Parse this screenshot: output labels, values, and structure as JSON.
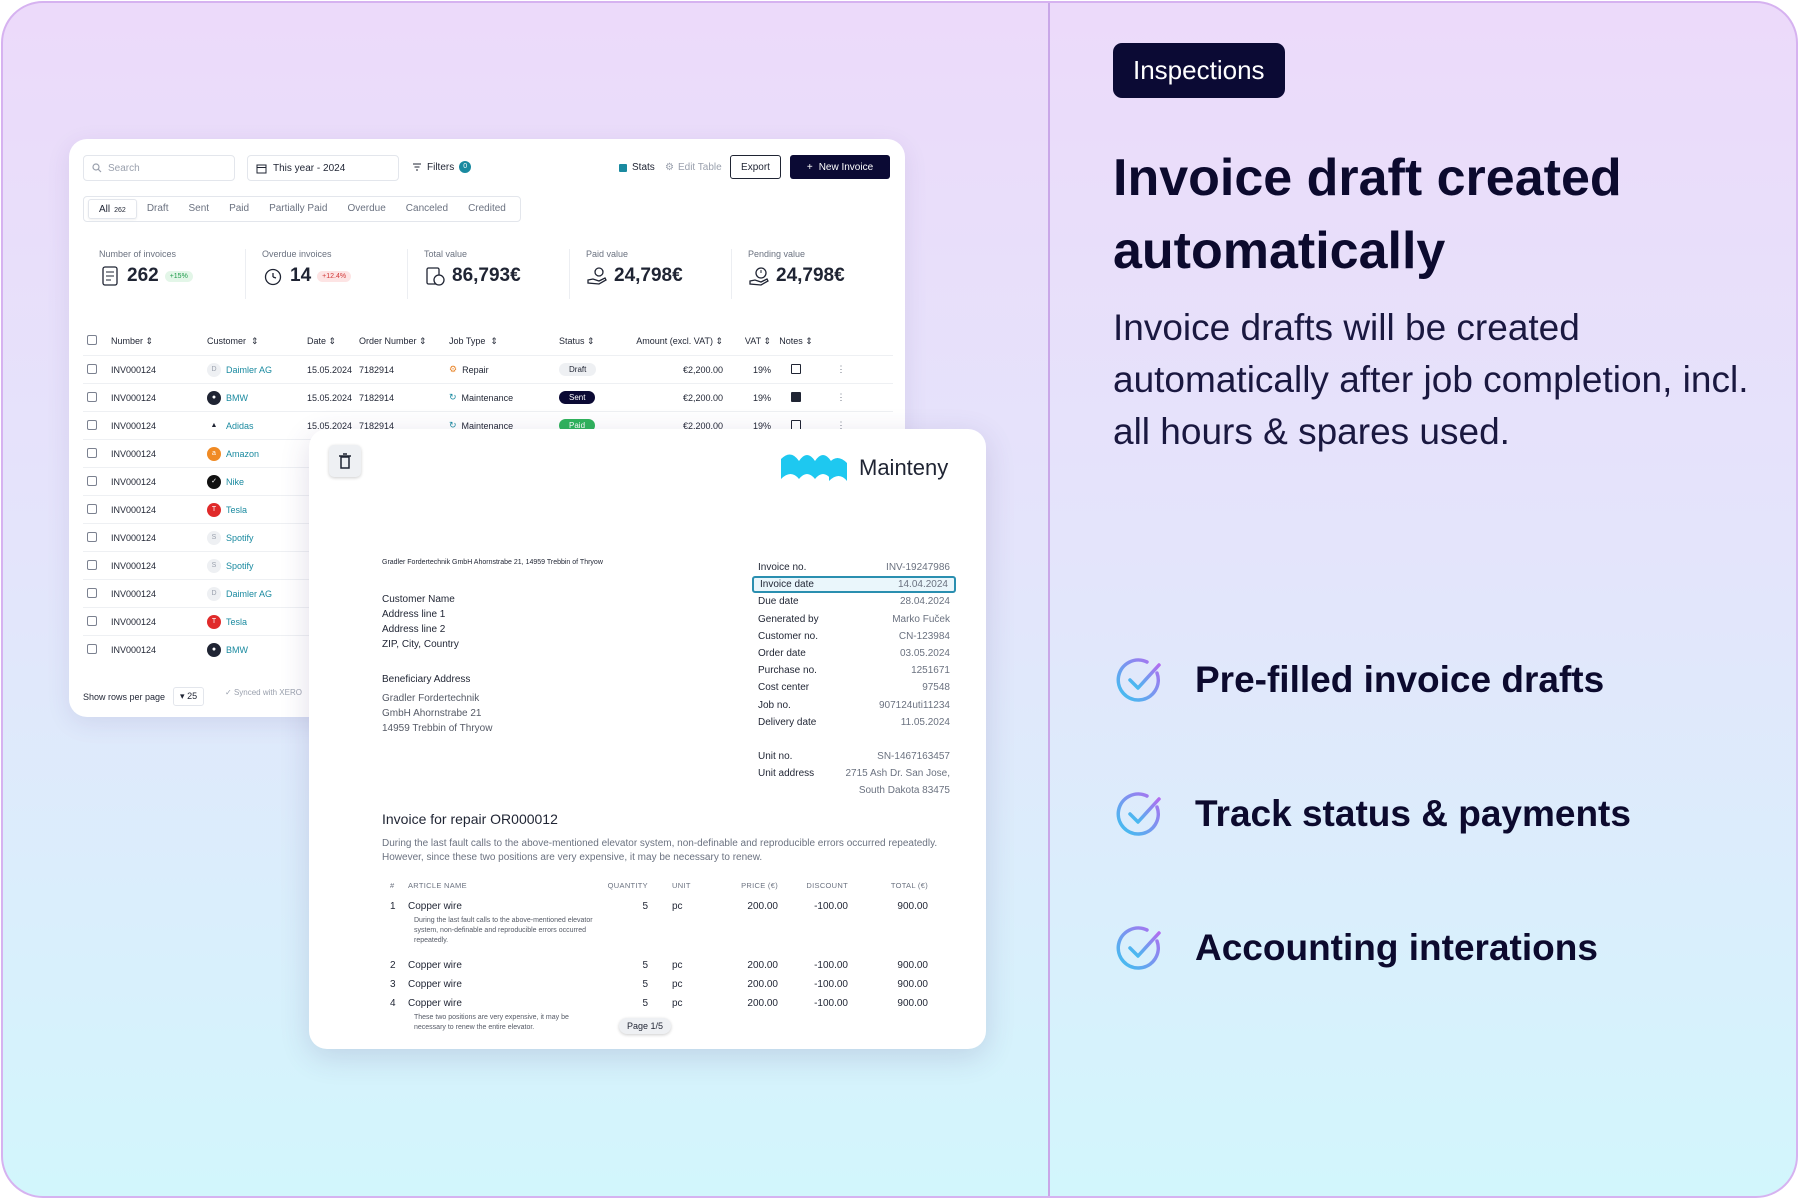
{
  "right_panel": {
    "badge": "Inspections",
    "headline_line1": "Invoice draft created",
    "headline_line2": "automatically",
    "subtitle": "Invoice drafts will be created automatically after job completion, incl. all hours & spares used.",
    "features": [
      {
        "label": "Pre-filled invoice drafts",
        "icon": "check-circle-icon"
      },
      {
        "label": "Track status & payments",
        "icon": "check-circle-icon"
      },
      {
        "label": "Accounting interations",
        "icon": "check-circle-icon"
      }
    ]
  },
  "list": {
    "search_placeholder": "Search",
    "date_filter": "This year - 2024",
    "filters_label": "Filters",
    "filters_count": "0",
    "stats_label": "Stats",
    "edit_table_label": "Edit Table",
    "export_label": "Export",
    "new_invoice_label": "New Invoice",
    "tabs": [
      {
        "label": "All",
        "count": "262"
      },
      {
        "label": "Draft"
      },
      {
        "label": "Sent"
      },
      {
        "label": "Paid"
      },
      {
        "label": "Partially Paid"
      },
      {
        "label": "Overdue"
      },
      {
        "label": "Canceled"
      },
      {
        "label": "Credited"
      }
    ],
    "kpis": [
      {
        "label": "Number of invoices",
        "value": "262",
        "badge": "+15%"
      },
      {
        "label": "Overdue invoices",
        "value": "14",
        "badge": "+12.4%"
      },
      {
        "label": "Total value",
        "value": "86,793€"
      },
      {
        "label": "Paid value",
        "value": "24,798€"
      },
      {
        "label": "Pending value",
        "value": "24,798€"
      }
    ],
    "columns": {
      "number": "Number",
      "customer": "Customer",
      "date": "Date",
      "order": "Order Number",
      "job": "Job Type",
      "status": "Status",
      "amount": "Amount (excl. VAT)",
      "vat": "VAT",
      "notes": "Notes"
    },
    "rows": [
      {
        "number": "INV000124",
        "customer": "Daimler AG",
        "date": "15.05.2024",
        "order": "7182914",
        "job": "Repair",
        "status": "Draft",
        "amount": "€2,200.00",
        "vat": "19%"
      },
      {
        "number": "INV000124",
        "customer": "BMW",
        "date": "15.05.2024",
        "order": "7182914",
        "job": "Maintenance",
        "status": "Sent",
        "amount": "€2,200.00",
        "vat": "19%"
      },
      {
        "number": "INV000124",
        "customer": "Adidas",
        "date": "15.05.2024",
        "order": "7182914",
        "job": "Maintenance",
        "status": "Paid",
        "amount": "€2,200.00",
        "vat": "19%"
      },
      {
        "number": "INV000124",
        "customer": "Amazon"
      },
      {
        "number": "INV000124",
        "customer": "Nike"
      },
      {
        "number": "INV000124",
        "customer": "Tesla"
      },
      {
        "number": "INV000124",
        "customer": "Spotify"
      },
      {
        "number": "INV000124",
        "customer": "Spotify"
      },
      {
        "number": "INV000124",
        "customer": "Daimler AG"
      },
      {
        "number": "INV000124",
        "customer": "Tesla"
      },
      {
        "number": "INV000124",
        "customer": "BMW"
      }
    ],
    "rows_per_page_label": "Show rows per page",
    "rows_per_page": "25",
    "synced_label": "Synced with XERO"
  },
  "doc": {
    "brand": "Mainteny",
    "sender_line": "Gradler Fordertechnik GmbH  Ahornstrabe 21, 14959  Trebbin of Thryow",
    "customer_lines": [
      "Customer Name",
      "Address line 1",
      "Address line 2",
      "ZIP, City, Country"
    ],
    "beneficiary_label": "Beneficiary Address",
    "beneficiary_lines": [
      "Gradler Fordertechnik",
      "GmbH  Ahornstrabe 21",
      "14959  Trebbin of Thryow"
    ],
    "meta": [
      {
        "label": "Invoice no.",
        "value": "INV-19247986"
      },
      {
        "label": "Invoice date",
        "value": "14.04.2024"
      },
      {
        "label": "Due date",
        "value": "28.04.2024"
      },
      {
        "label": "Generated by",
        "value": "Marko Fuček"
      },
      {
        "label": "Customer no.",
        "value": "CN-123984"
      },
      {
        "label": "Order date",
        "value": "03.05.2024"
      },
      {
        "label": "Purchase no.",
        "value": "1251671"
      },
      {
        "label": "Cost center",
        "value": "97548"
      },
      {
        "label": "Job no.",
        "value": "907124uti11234"
      },
      {
        "label": "Delivery date",
        "value": "11.05.2024"
      }
    ],
    "unit_no_label": "Unit no.",
    "unit_no": "SN-1467163457",
    "unit_address_label": "Unit address",
    "unit_address_1": "2715 Ash Dr. San Jose,",
    "unit_address_2": "South Dakota 83475",
    "title": "Invoice for repair OR000012",
    "description": "During the last fault calls to the above-mentioned elevator system, non-definable and reproducible errors occurred repeatedly.  However, since these two positions are very expensive, it may be necessary to renew.",
    "item_headers": {
      "n": "#",
      "name": "ARTICLE NAME",
      "qty": "QUANTITY",
      "unit": "UNIT",
      "price": "PRICE (€)",
      "disc": "DISCOUNT",
      "total": "TOTAL (€)"
    },
    "items": [
      {
        "n": "1",
        "name": "Copper wire",
        "qty": "5",
        "unit": "pc",
        "price": "200.00",
        "disc": "-100.00",
        "total": "900.00",
        "note": "During the last fault calls to the above-mentioned elevator system, non-definable and reproducible errors occurred repeatedly."
      },
      {
        "n": "2",
        "name": "Copper wire",
        "qty": "5",
        "unit": "pc",
        "price": "200.00",
        "disc": "-100.00",
        "total": "900.00"
      },
      {
        "n": "3",
        "name": "Copper wire",
        "qty": "5",
        "unit": "pc",
        "price": "200.00",
        "disc": "-100.00",
        "total": "900.00"
      },
      {
        "n": "4",
        "name": "Copper wire",
        "qty": "5",
        "unit": "pc",
        "price": "200.00",
        "disc": "-100.00",
        "total": "900.00",
        "note": "These two positions are very expensive, it may be necessary to renew the entire elevator."
      }
    ],
    "page_label": "Page 1/5"
  },
  "colors": {
    "brand_dark": "#0b0a34",
    "accent_teal": "#1a8aa0",
    "check_gradient_start": "#3ac4f0",
    "check_gradient_end": "#b26cf0"
  }
}
